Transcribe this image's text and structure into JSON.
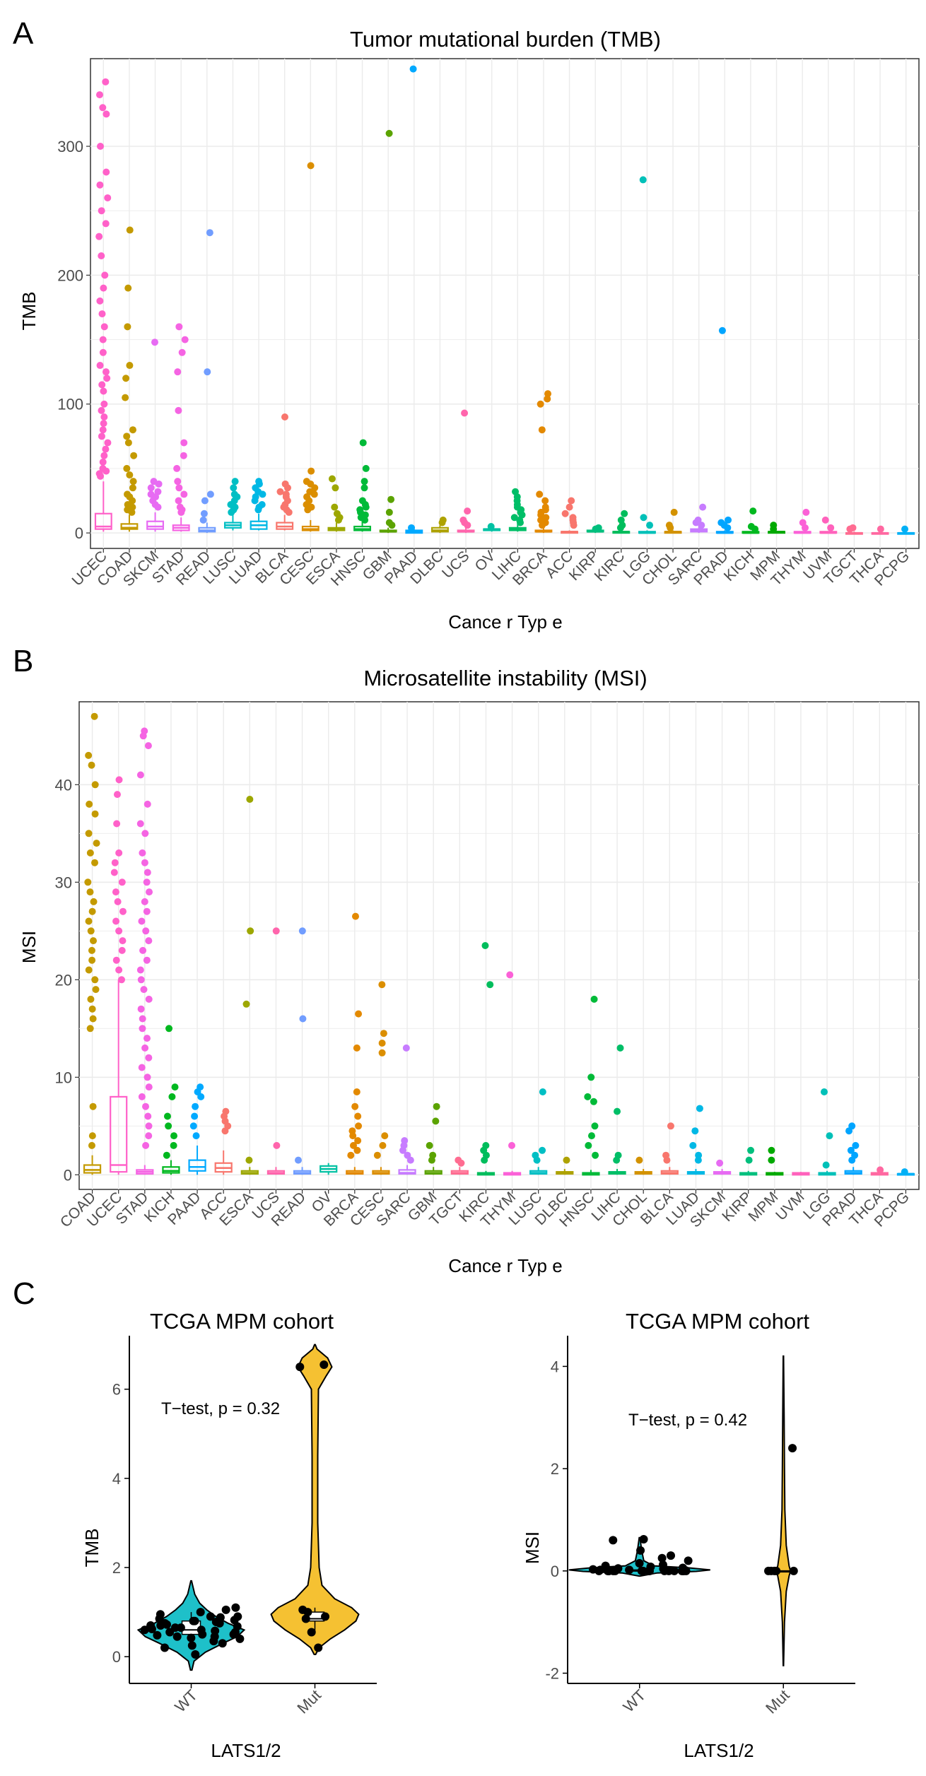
{
  "panels": {
    "a_label": "A",
    "b_label": "B",
    "c_label": "C"
  },
  "colors": {
    "highlight": "#e8192c",
    "violin_wt": "#1ec0c9",
    "violin_mut": "#f5c132",
    "grid": "#ebebeb",
    "tick_text": "#4d4d4d"
  },
  "chart_data": [
    {
      "id": "tmb",
      "type": "box",
      "title": "Tumor mutational burden (TMB)",
      "xlabel": "Cance r Typ e",
      "ylabel": "TMB",
      "ylim": [
        -12,
        368
      ],
      "yticks": [
        0,
        100,
        200,
        300
      ],
      "highlight": "MPM",
      "categories": [
        "UCEC",
        "COAD",
        "SKCM",
        "STAD",
        "READ",
        "LUSC",
        "LUAD",
        "BLCA",
        "CESC",
        "ESCA",
        "HNSC",
        "GBM",
        "PAAD",
        "DLBC",
        "UCS",
        "OV",
        "LIHC",
        "BRCA",
        "ACC",
        "KIRP",
        "KIRC",
        "LGG",
        "CHOL",
        "SARC",
        "PRAD",
        "KICH",
        "MPM",
        "THYM",
        "UVM",
        "TGCT",
        "THCA",
        "PCPG"
      ],
      "colors": [
        "#ff61c9",
        "#c49a00",
        "#e76bf3",
        "#f564e3",
        "#719dff",
        "#00bfc4",
        "#00b8e5",
        "#f8766d",
        "#db8e00",
        "#9da700",
        "#00ba38",
        "#5ba300",
        "#00a9ff",
        "#aea200",
        "#ff65ac",
        "#00c1a3",
        "#00be67",
        "#e38900",
        "#f8766d",
        "#00bf7d",
        "#00bd5c",
        "#00c0b8",
        "#d39200",
        "#c77cff",
        "#00a5ff",
        "#00b81f",
        "#00a900",
        "#fb61d7",
        "#ff62bc",
        "#ff6c91",
        "#ff68a1",
        "#00b0f6"
      ],
      "boxes": [
        [
          1,
          3,
          5,
          15,
          40
        ],
        [
          1,
          3,
          4,
          7,
          14
        ],
        [
          1,
          3,
          5,
          9,
          16
        ],
        [
          1,
          2,
          4,
          6,
          12
        ],
        [
          0,
          1,
          2,
          4,
          8
        ],
        [
          2,
          4,
          6,
          8,
          14
        ],
        [
          2,
          3,
          6,
          9,
          15
        ],
        [
          2,
          3,
          5,
          8,
          14
        ],
        [
          1,
          2,
          3,
          5,
          10
        ],
        [
          1,
          2,
          3,
          4,
          8
        ],
        [
          1,
          2,
          3,
          5,
          9
        ],
        [
          0,
          1,
          1,
          2,
          4
        ],
        [
          0,
          0,
          1,
          2,
          3
        ],
        [
          0,
          1,
          2,
          4,
          6
        ],
        [
          0,
          1,
          1,
          2,
          4
        ],
        [
          1,
          2,
          3,
          3,
          5
        ],
        [
          1,
          2,
          3,
          4,
          7
        ],
        [
          0,
          1,
          1,
          2,
          4
        ],
        [
          0,
          0,
          1,
          1,
          2
        ],
        [
          0,
          1,
          1,
          2,
          3
        ],
        [
          0,
          0,
          1,
          1,
          2
        ],
        [
          0,
          0,
          0,
          1,
          2
        ],
        [
          0,
          0,
          1,
          1,
          2
        ],
        [
          0,
          1,
          2,
          3,
          5
        ],
        [
          0,
          0,
          0,
          1,
          2
        ],
        [
          0,
          0,
          0,
          1,
          1
        ],
        [
          0,
          0,
          1,
          1,
          1
        ],
        [
          0,
          0,
          0,
          1,
          1
        ],
        [
          0,
          0,
          0,
          1,
          1
        ],
        [
          0,
          0,
          0,
          0,
          1
        ],
        [
          0,
          0,
          0,
          0,
          1
        ],
        [
          0,
          0,
          0,
          0,
          1
        ]
      ],
      "outliers": [
        [
          350,
          340,
          330,
          325,
          300,
          280,
          270,
          260,
          250,
          240,
          230,
          215,
          200,
          190,
          180,
          170,
          160,
          150,
          140,
          130,
          125,
          120,
          115,
          110,
          100,
          95,
          90,
          85,
          80,
          75,
          70,
          65,
          60,
          55,
          50,
          48,
          46,
          44
        ],
        [
          235,
          190,
          160,
          130,
          120,
          105,
          80,
          75,
          70,
          60,
          50,
          45,
          40,
          35,
          30,
          28,
          25,
          22,
          20,
          18,
          16
        ],
        [
          148,
          40,
          38,
          35,
          32,
          30,
          28,
          25,
          22,
          20
        ],
        [
          160,
          150,
          140,
          125,
          95,
          70,
          60,
          50,
          40,
          35,
          30,
          25,
          20,
          18,
          16
        ],
        [
          233,
          125,
          30,
          25,
          15,
          10
        ],
        [
          40,
          35,
          30,
          28,
          25,
          22,
          20,
          18,
          16
        ],
        [
          40,
          38,
          35,
          32,
          30,
          28,
          25,
          22,
          20,
          18
        ],
        [
          90,
          38,
          35,
          32,
          30,
          28,
          25,
          22,
          20,
          18,
          16
        ],
        [
          285,
          48,
          40,
          38,
          35,
          32,
          30,
          28,
          25,
          22,
          20,
          18
        ],
        [
          42,
          35,
          20,
          15,
          12,
          10
        ],
        [
          70,
          50,
          40,
          35,
          25,
          22,
          20,
          18,
          16,
          14,
          12,
          10
        ],
        [
          310,
          26,
          16,
          8,
          6
        ],
        [
          360,
          4
        ],
        [
          10,
          8
        ],
        [
          93,
          17,
          10,
          8,
          6
        ],
        [
          5
        ],
        [
          32,
          28,
          25,
          22,
          20,
          18,
          16,
          14,
          12,
          10,
          8
        ],
        [
          108,
          104,
          100,
          80,
          30,
          25,
          20,
          18,
          16,
          14,
          12,
          10,
          8,
          6
        ],
        [
          25,
          20,
          15,
          12,
          10,
          8,
          6
        ],
        [
          4,
          3
        ],
        [
          15,
          10,
          6,
          4
        ],
        [
          274,
          12,
          6
        ],
        [
          16,
          6,
          4
        ],
        [
          20,
          10,
          8,
          6
        ],
        [
          157,
          10,
          8,
          6,
          4
        ],
        [
          17,
          5,
          3
        ],
        [
          6,
          3
        ],
        [
          16,
          8,
          4
        ],
        [
          10,
          4
        ],
        [
          4,
          3
        ],
        [
          3
        ],
        [
          3
        ]
      ]
    },
    {
      "id": "msi",
      "type": "box",
      "title": "Microsatellite instability (MSI)",
      "xlabel": "Cance r Typ e",
      "ylabel": "MSI",
      "ylim": [
        -1.5,
        48.5
      ],
      "yticks": [
        0,
        10,
        20,
        30,
        40
      ],
      "highlight": "MPM",
      "categories": [
        "COAD",
        "UCEC",
        "STAD",
        "KICH",
        "PAAD",
        "ACC",
        "ESCA",
        "UCS",
        "READ",
        "OV",
        "BRCA",
        "CESC",
        "SARC",
        "GBM",
        "TGCT",
        "KIRC",
        "THYM",
        "LUSC",
        "DLBC",
        "HNSC",
        "LIHC",
        "CHOL",
        "BLCA",
        "LUAD",
        "SKCM",
        "KIRP",
        "MPM",
        "UVM",
        "LGG",
        "PRAD",
        "THCA",
        "PCPG"
      ],
      "colors": [
        "#c49a00",
        "#ff61c9",
        "#f564e3",
        "#00b81f",
        "#00a9ff",
        "#f8766d",
        "#9da700",
        "#ff65ac",
        "#719dff",
        "#00c1a3",
        "#e38900",
        "#db8e00",
        "#c77cff",
        "#5ba300",
        "#ff6c91",
        "#00bd5c",
        "#fb61d7",
        "#00bfc4",
        "#aea200",
        "#00ba38",
        "#00be67",
        "#d39200",
        "#f8766d",
        "#00b8e5",
        "#e76bf3",
        "#00bf7d",
        "#00a900",
        "#ff62bc",
        "#00c0b8",
        "#00a5ff",
        "#ff68a1",
        "#00b0f6"
      ],
      "boxes": [
        [
          0,
          0.2,
          0.5,
          1,
          2
        ],
        [
          0,
          0.3,
          1,
          8,
          20
        ],
        [
          0,
          0.1,
          0.3,
          0.5,
          1
        ],
        [
          0,
          0.2,
          0.4,
          0.8,
          1.5
        ],
        [
          0,
          0.4,
          0.8,
          1.5,
          3
        ],
        [
          0,
          0.3,
          0.7,
          1.2,
          2.5
        ],
        [
          0,
          0.1,
          0.2,
          0.4,
          0.8
        ],
        [
          0,
          0.1,
          0.2,
          0.4,
          0.8
        ],
        [
          0,
          0.1,
          0.2,
          0.4,
          0.8
        ],
        [
          0,
          0.3,
          0.6,
          0.9,
          1.2
        ],
        [
          0,
          0.1,
          0.2,
          0.4,
          0.8
        ],
        [
          0,
          0.1,
          0.2,
          0.4,
          0.8
        ],
        [
          0,
          0.1,
          0.2,
          0.5,
          1
        ],
        [
          0,
          0.1,
          0.2,
          0.4,
          0.8
        ],
        [
          0,
          0.1,
          0.2,
          0.4,
          0.8
        ],
        [
          0,
          0,
          0.1,
          0.2,
          0.4
        ],
        [
          0,
          0,
          0.1,
          0.2,
          0.4
        ],
        [
          0,
          0.1,
          0.2,
          0.4,
          0.8
        ],
        [
          0,
          0.1,
          0.2,
          0.3,
          0.6
        ],
        [
          0,
          0,
          0.1,
          0.2,
          0.5
        ],
        [
          0,
          0.1,
          0.2,
          0.3,
          0.6
        ],
        [
          0,
          0.1,
          0.2,
          0.3,
          0.6
        ],
        [
          0,
          0.1,
          0.2,
          0.4,
          0.8
        ],
        [
          0,
          0.1,
          0.2,
          0.3,
          0.6
        ],
        [
          0,
          0.1,
          0.2,
          0.3,
          0.6
        ],
        [
          0,
          0,
          0.1,
          0.2,
          0.4
        ],
        [
          0,
          0,
          0.1,
          0.2,
          0.3
        ],
        [
          0,
          0,
          0.1,
          0.2,
          0.3
        ],
        [
          0,
          0,
          0.1,
          0.2,
          0.4
        ],
        [
          0,
          0.1,
          0.2,
          0.4,
          0.8
        ],
        [
          0,
          0,
          0.1,
          0.2,
          0.3
        ],
        [
          0,
          0,
          0.1,
          0.1,
          0.2
        ]
      ],
      "outliers": [
        [
          47,
          43,
          42,
          40,
          38,
          37,
          35,
          34,
          33,
          32,
          30,
          29,
          28,
          27,
          26,
          25,
          24,
          23,
          22,
          21,
          20,
          19,
          18,
          17,
          16,
          15,
          7,
          4,
          3
        ],
        [
          40.5,
          39,
          36,
          33,
          32,
          31,
          30,
          29,
          28,
          27,
          26,
          25,
          24,
          23,
          22,
          21,
          20
        ],
        [
          45.5,
          45,
          44,
          41,
          38,
          36,
          35,
          33,
          32,
          31,
          30,
          29,
          28,
          27,
          26,
          25,
          24,
          23,
          22,
          21,
          20,
          19,
          18,
          17,
          16,
          15,
          14,
          13,
          12,
          11,
          10,
          9,
          8,
          7,
          6,
          5,
          4,
          3
        ],
        [
          15,
          9,
          8,
          6,
          5,
          4,
          3,
          2
        ],
        [
          9,
          8.5,
          8,
          7,
          6,
          5,
          4
        ],
        [
          6.5,
          6,
          5.5,
          5,
          4.5
        ],
        [
          38.5,
          25,
          17.5,
          1.5
        ],
        [
          25,
          3
        ],
        [
          25,
          16,
          1.5
        ],
        [],
        [
          26.5,
          16.5,
          13,
          8.5,
          7,
          6,
          5,
          4.5,
          4,
          3.5,
          3,
          2.5,
          2
        ],
        [
          19.5,
          14.5,
          13.5,
          12.5,
          4,
          3,
          2
        ],
        [
          13,
          3.5,
          3,
          2.5,
          2,
          1.5
        ],
        [
          7,
          5.5,
          3,
          2,
          1.5
        ],
        [
          1.5,
          1.2
        ],
        [
          23.5,
          19.5,
          3,
          2.5,
          2,
          1.5
        ],
        [
          20.5,
          3
        ],
        [
          8.5,
          2.5,
          2,
          1.5
        ],
        [
          1.5
        ],
        [
          18,
          10,
          8,
          7.5,
          5,
          4,
          3,
          2
        ],
        [
          13,
          6.5,
          2,
          1.5
        ],
        [
          1.5
        ],
        [
          5,
          2,
          1.5
        ],
        [
          6.8,
          4.5,
          3,
          2,
          1.5
        ],
        [
          1.2
        ],
        [
          2.5,
          1.5
        ],
        [
          2.5,
          1.5
        ],
        [],
        [
          8.5,
          4,
          1
        ],
        [
          5,
          4.5,
          3,
          2.5,
          2,
          1.5
        ],
        [
          0.5
        ],
        [
          0.3
        ]
      ]
    },
    {
      "id": "tmb_violin",
      "type": "violin",
      "title": "TCGA MPM cohort",
      "xlabel": "LATS1/2",
      "ylabel": "TMB",
      "ylim": [
        -0.6,
        7.2
      ],
      "yticks": [
        0,
        2,
        4,
        6
      ],
      "annotation": "T−test, p = 0.32",
      "categories": [
        "WT",
        "Mut"
      ],
      "boxes": [
        [
          0.4,
          0.5,
          0.6,
          0.8,
          1.0
        ],
        [
          0.55,
          0.8,
          0.85,
          1.0,
          1.1
        ]
      ],
      "points": [
        [
          0.05,
          0.2,
          0.25,
          0.3,
          0.35,
          0.4,
          0.42,
          0.45,
          0.48,
          0.5,
          0.52,
          0.55,
          0.58,
          0.6,
          0.62,
          0.65,
          0.68,
          0.7,
          0.72,
          0.75,
          0.78,
          0.8,
          0.82,
          0.85,
          0.88,
          0.9,
          0.95,
          1.0,
          1.05,
          1.1,
          0.5,
          0.6,
          0.7,
          0.8,
          0.9,
          0.45,
          0.55,
          0.65,
          0.75
        ],
        [
          6.55,
          6.5,
          1.05,
          1.0,
          0.9,
          0.85,
          0.55,
          0.2
        ]
      ]
    },
    {
      "id": "msi_violin",
      "type": "violin",
      "title": "TCGA MPM cohort",
      "xlabel": "LATS1/2",
      "ylabel": "MSI",
      "ylim": [
        -2.2,
        4.6
      ],
      "yticks": [
        -2,
        0,
        2,
        4
      ],
      "annotation": "T−test, p = 0.42",
      "categories": [
        "WT",
        "Mut"
      ],
      "boxes": [
        [
          0,
          0,
          0,
          0.02,
          0.05
        ],
        [
          0,
          0,
          0,
          0,
          0
        ]
      ],
      "points": [
        [
          0.62,
          0.6,
          0.4,
          0.3,
          0.25,
          0.2,
          0.15,
          0.12,
          0.1,
          0.08,
          0.06,
          0.05,
          0.04,
          0.03,
          0.02,
          0.02,
          0.01,
          0,
          0,
          0,
          0,
          0,
          0,
          0,
          0,
          0,
          0,
          0,
          0,
          0,
          0,
          0,
          0,
          0
        ],
        [
          2.4,
          0,
          0,
          0,
          0,
          0
        ]
      ]
    }
  ]
}
